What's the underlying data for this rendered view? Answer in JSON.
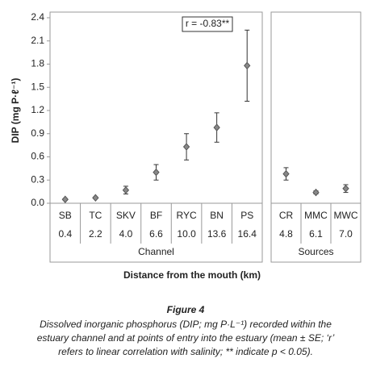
{
  "chart_data": [
    {
      "type": "errorbar",
      "ylabel": "DIP (mg P·ℓ⁻¹)",
      "annotation": "r = -0.83**",
      "xlabel": "Channel",
      "categories": [
        "SB",
        "TC",
        "SKV",
        "BF",
        "RYC",
        "BN",
        "PS"
      ],
      "distances": [
        "0.4",
        "2.2",
        "4.0",
        "6.6",
        "10.0",
        "13.6",
        "16.4"
      ],
      "values": [
        0.05,
        0.07,
        0.17,
        0.4,
        0.73,
        0.98,
        1.78
      ],
      "errors": [
        0.01,
        0.01,
        0.05,
        0.1,
        0.17,
        0.19,
        0.46
      ],
      "color": "#888888",
      "ylim": [
        0,
        2.4
      ],
      "yticks": [
        {
          "value": 0,
          "label": "0.0"
        },
        0.3,
        0.6,
        0.9,
        1.2,
        1.5,
        1.8,
        2.1,
        2.4
      ]
    },
    {
      "type": "errorbar",
      "xlabel": "Sources",
      "categories": [
        "CR",
        "MMC",
        "MWC"
      ],
      "distances": [
        "4.8",
        "6.1",
        "7.0"
      ],
      "values": [
        0.38,
        0.14,
        0.19
      ],
      "errors": [
        0.08,
        0.02,
        0.05
      ],
      "color": "#888888",
      "ylim": [
        0,
        2.4
      ]
    }
  ],
  "x_axis_title": "Distance from the mouth (km)",
  "caption": {
    "title": "Figure 4",
    "lines": [
      "Dissolved inorganic phosphorus (DIP; mg P·L⁻¹) recorded within the",
      "estuary channel and at points of entry into the estuary (mean ± SE; ‘r’",
      "refers to linear correlation with salinity; ** indicate p < 0.05)."
    ]
  }
}
